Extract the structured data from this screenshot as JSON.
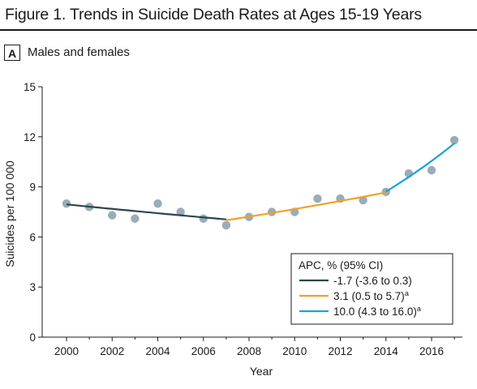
{
  "figure": {
    "title": "Figure 1. Trends in Suicide Death Rates at Ages 15-19 Years"
  },
  "panel": {
    "letter": "A",
    "label": "Males and females"
  },
  "chart_data": {
    "type": "scatter",
    "xlabel": "Year",
    "ylabel": "Suicides per 100 000",
    "xlim": [
      1999.5,
      2017
    ],
    "ylim": [
      0,
      15
    ],
    "x_ticks": [
      "2000",
      "2002",
      "2004",
      "2006",
      "2008",
      "2010",
      "2012",
      "2014",
      "2016"
    ],
    "y_ticks": [
      "0",
      "3",
      "6",
      "9",
      "12",
      "15"
    ],
    "grid": false,
    "points": {
      "color": "#98adb8",
      "x": [
        2000,
        2001,
        2002,
        2003,
        2004,
        2005,
        2006,
        2007,
        2008,
        2009,
        2010,
        2011,
        2012,
        2013,
        2014,
        2015,
        2016,
        2017
      ],
      "y": [
        8.0,
        7.8,
        7.3,
        7.1,
        8.0,
        7.5,
        7.1,
        6.7,
        7.2,
        7.5,
        7.5,
        8.3,
        8.3,
        8.2,
        8.7,
        9.8,
        10.0,
        11.8
      ]
    },
    "legend": {
      "title": "APC, % (95% CI)",
      "position": "bottom-right"
    },
    "series": [
      {
        "name": "-1.7 (-3.6 to 0.3)",
        "superscript": "",
        "color": "#2e4550",
        "x": [
          2000,
          2007
        ],
        "apc": -1.7,
        "y_start": 7.95
      },
      {
        "name": "3.1 (0.5 to 5.7)",
        "superscript": "a",
        "color": "#f0a126",
        "x": [
          2007,
          2014
        ],
        "apc": 3.1,
        "y_start": 7.0
      },
      {
        "name": "10.0 (4.3 to 16.0)",
        "superscript": "a",
        "color": "#1fa0d6",
        "x": [
          2014,
          2017
        ],
        "apc": 10.0,
        "y_start": 8.72
      }
    ]
  }
}
